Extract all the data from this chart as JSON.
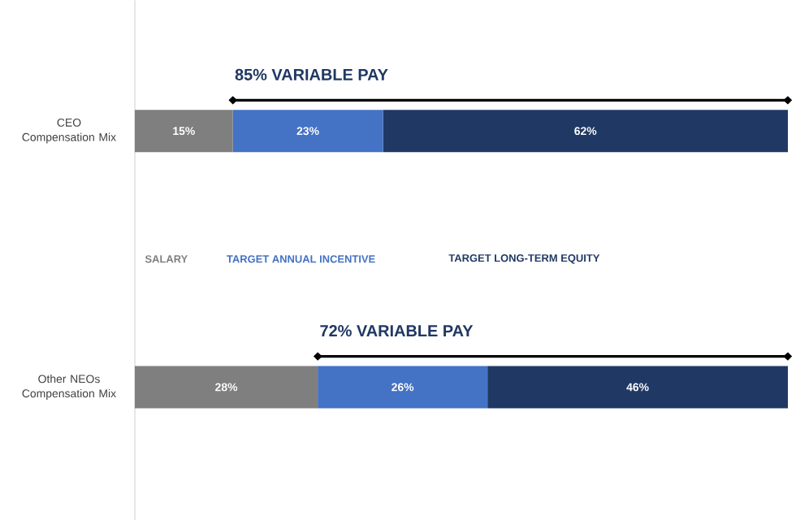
{
  "chart_data": {
    "type": "bar",
    "orientation": "horizontal",
    "stacked": true,
    "categories": [
      "CEO Compensation Mix",
      "Other NEOs Compensation Mix"
    ],
    "series": [
      {
        "name": "SALARY",
        "color": "#7f7f7f",
        "values": [
          15,
          28
        ],
        "value_labels": [
          "15%",
          "28%"
        ]
      },
      {
        "name": "TARGET ANNUAL INCENTIVE",
        "color": "#4472c4",
        "values": [
          23,
          26
        ],
        "value_labels": [
          "23%",
          "26%"
        ]
      },
      {
        "name": "TARGET LONG-TERM EQUITY",
        "color": "#203864",
        "values": [
          62,
          46
        ],
        "value_labels": [
          "62%",
          "46%"
        ]
      }
    ],
    "legend": "center",
    "annotations": [
      "85% VARIABLE PAY",
      "72% VARIABLE PAY"
    ]
  }
}
